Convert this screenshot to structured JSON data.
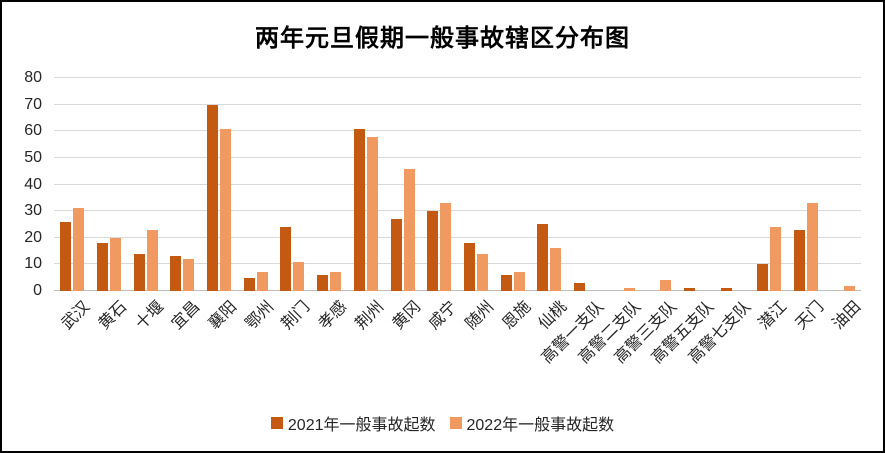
{
  "chart_data": {
    "type": "bar",
    "title": "两年元旦假期一般事故辖区分布图",
    "categories": [
      "武汉",
      "黄石",
      "十堰",
      "宜昌",
      "襄阳",
      "鄂州",
      "荆门",
      "孝感",
      "荆州",
      "黄冈",
      "咸宁",
      "随州",
      "恩施",
      "仙桃",
      "高警一支队",
      "高警二支队",
      "高警三支队",
      "高警五支队",
      "高警七支队",
      "潜江",
      "天门",
      "油田"
    ],
    "series": [
      {
        "name": "2021年一般事故起数",
        "color": "#C45911",
        "values": [
          26,
          18,
          14,
          13,
          70,
          5,
          24,
          6,
          61,
          27,
          30,
          18,
          6,
          25,
          3,
          0,
          0,
          1,
          1,
          10,
          23,
          0
        ]
      },
      {
        "name": "2022年一般事故起数",
        "color": "#F09A62",
        "values": [
          31,
          20,
          23,
          12,
          61,
          7,
          11,
          7,
          58,
          46,
          33,
          14,
          7,
          16,
          0,
          1,
          4,
          0,
          0,
          24,
          33,
          2
        ]
      }
    ],
    "ylim": [
      0,
      80
    ],
    "ytick_step": 10,
    "grid": "horizontal",
    "legend_position": "bottom"
  }
}
